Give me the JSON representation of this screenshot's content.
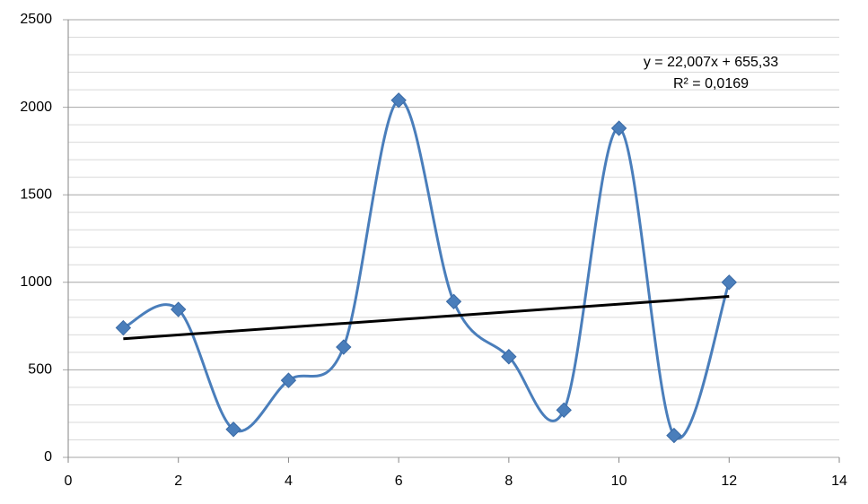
{
  "chart_data": {
    "type": "scatter",
    "series": [
      {
        "color": "#4a7ebb",
        "smooth": true,
        "marker": "diamond",
        "x": [
          1,
          2,
          3,
          4,
          5,
          6,
          7,
          8,
          9,
          10,
          11,
          12
        ],
        "values": [
          740,
          845,
          160,
          440,
          630,
          2040,
          890,
          575,
          270,
          1880,
          125,
          1000
        ]
      }
    ],
    "trendline": {
      "slope": 22.007,
      "intercept": 655.33,
      "color": "#000000",
      "equation": "y = 22,007x + 655,33",
      "r2": "R² = 0,0169"
    },
    "xlim": [
      0,
      14
    ],
    "xticks": [
      0,
      2,
      4,
      6,
      8,
      10,
      12,
      14
    ],
    "ylim": [
      0,
      2500
    ],
    "yticks": [
      0,
      500,
      1000,
      1500,
      2000,
      2500
    ],
    "yminorticks": [
      100,
      200,
      300,
      400,
      600,
      700,
      800,
      900,
      1100,
      1200,
      1300,
      1400,
      1600,
      1700,
      1800,
      1900,
      2100,
      2200,
      2300,
      2400
    ],
    "grid": true
  }
}
